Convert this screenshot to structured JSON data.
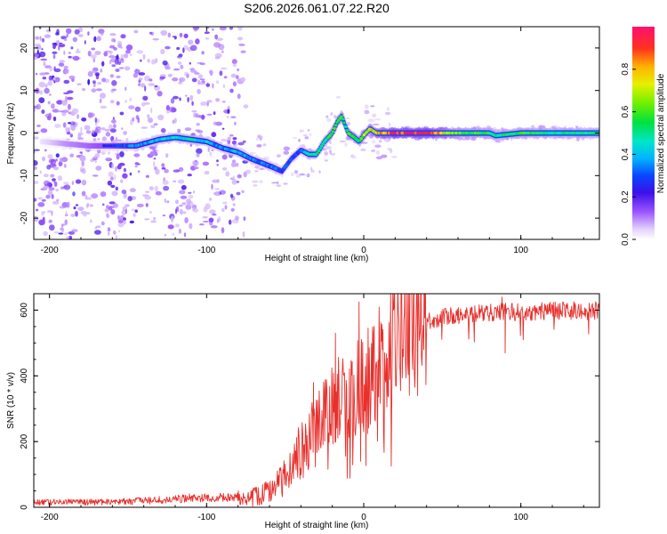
{
  "title": "S206.2026.061.07.22.R20",
  "chart_data": [
    {
      "type": "heatmap",
      "name": "spectrogram",
      "xlabel": "Height of straight line (km)",
      "ylabel": "Frequency (Hz)",
      "xlim": [
        -210,
        150
      ],
      "ylim": [
        -25,
        25
      ],
      "xticks": [
        -200,
        -100,
        0,
        100
      ],
      "yticks": [
        -20,
        -10,
        0,
        10,
        20
      ],
      "ridge": {
        "description": "Bright frequency track vs height",
        "x": [
          -205,
          -190,
          -175,
          -160,
          -145,
          -130,
          -120,
          -110,
          -100,
          -90,
          -80,
          -72,
          -65,
          -58,
          -52,
          -46,
          -40,
          -35,
          -30,
          -25,
          -20,
          -17,
          -14,
          -10,
          -6,
          -3,
          0,
          4,
          8,
          12,
          20,
          40,
          60,
          80,
          84,
          100,
          120,
          150
        ],
        "freq": [
          -2,
          -2.5,
          -3,
          -3,
          -3,
          -1.5,
          -1,
          -1.5,
          -2,
          -3.5,
          -4.5,
          -6,
          -7,
          -8,
          -9,
          -6,
          -4,
          -5,
          -5,
          -2,
          0,
          2.5,
          4,
          0,
          -1,
          -2,
          -0.5,
          1,
          0,
          0,
          0,
          0,
          0,
          0,
          -0.6,
          0,
          0,
          0
        ],
        "amplitude": [
          0.05,
          0.15,
          0.2,
          0.25,
          0.35,
          0.4,
          0.45,
          0.45,
          0.4,
          0.35,
          0.4,
          0.35,
          0.35,
          0.35,
          0.3,
          0.3,
          0.3,
          0.45,
          0.5,
          0.5,
          0.55,
          0.6,
          0.55,
          0.55,
          0.6,
          0.55,
          0.65,
          0.7,
          0.75,
          0.8,
          0.95,
          0.95,
          0.6,
          0.55,
          0.5,
          0.55,
          0.5,
          0.5
        ]
      }
    },
    {
      "type": "line",
      "name": "snr",
      "xlabel": "Height of straight line (km)",
      "ylabel": "SNR (10 * v/v)",
      "xlim": [
        -210,
        150
      ],
      "ylim": [
        0,
        650
      ],
      "xticks": [
        -200,
        -100,
        0,
        100
      ],
      "yticks": [
        0,
        200,
        400,
        600
      ],
      "series": [
        {
          "name": "SNR",
          "color": "#e8302c",
          "x": [
            -210,
            -190,
            -170,
            -150,
            -130,
            -110,
            -90,
            -80,
            -70,
            -65,
            -60,
            -55,
            -50,
            -45,
            -40,
            -35,
            -30,
            -25,
            -20,
            -15,
            -10,
            -5,
            0,
            5,
            10,
            15,
            20,
            25,
            30,
            40,
            50,
            60,
            70,
            80,
            90,
            100,
            110,
            120,
            130,
            140,
            150
          ],
          "y": [
            15,
            15,
            16,
            18,
            22,
            28,
            30,
            32,
            35,
            40,
            50,
            70,
            100,
            140,
            180,
            210,
            240,
            280,
            320,
            330,
            340,
            360,
            380,
            410,
            440,
            470,
            500,
            520,
            540,
            565,
            580,
            585,
            590,
            592,
            595,
            595,
            595,
            597,
            598,
            598,
            600
          ]
        }
      ],
      "spikes": [
        {
          "x": -32,
          "y": 380
        },
        {
          "x": -18,
          "y": 530
        },
        {
          "x": -3,
          "y": 625
        },
        {
          "x": -2,
          "y": 140
        },
        {
          "x": 90,
          "y": 470
        },
        {
          "x": 88,
          "y": 640
        }
      ]
    }
  ],
  "colorbar": {
    "label": "Normalized spectral amplitude",
    "ticks": [
      "0.0",
      "0.2",
      "0.4",
      "0.6",
      "0.8"
    ],
    "range": [
      0,
      1
    ]
  }
}
